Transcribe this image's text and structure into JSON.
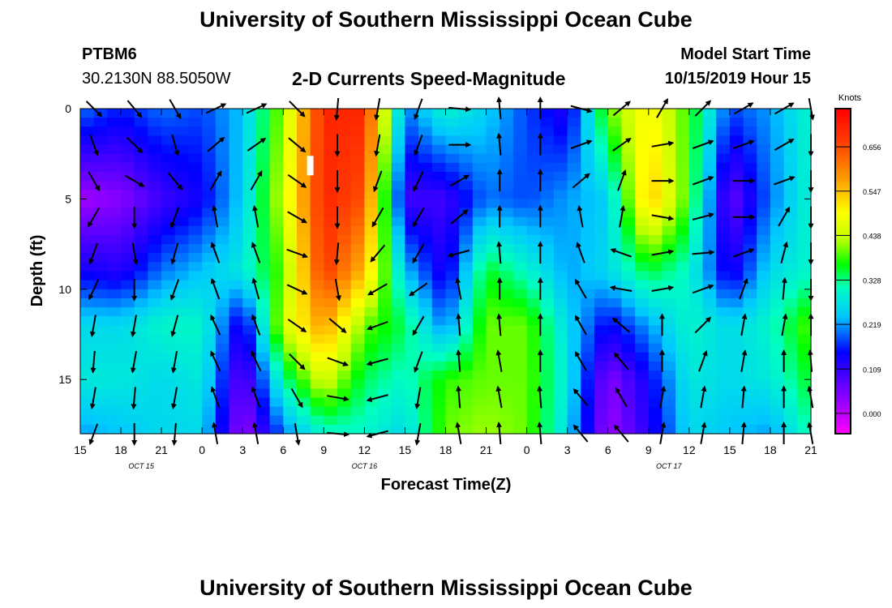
{
  "header": {
    "title": "University of Southern Mississippi Ocean Cube",
    "station_id": "PTBM6",
    "coordinates": "30.2130N 88.5050W",
    "subtitle": "2-D Currents Speed-Magnitude",
    "model_start_label": "Model Start Time",
    "model_start_value": "10/15/2019 Hour 15"
  },
  "footer": {
    "title": "University of Southern Mississippi Ocean Cube"
  },
  "chart_data": {
    "type": "heatmap",
    "title": "2-D Currents Speed-Magnitude",
    "xlabel": "Forecast Time(Z)",
    "ylabel": "Depth (ft)",
    "x_unit": "hours since model start (10/15/2019 Hour 15)",
    "xlim": [
      0,
      54
    ],
    "ylim": [
      0,
      18
    ],
    "y_inverted": true,
    "x_ticks": [
      {
        "pos": 0,
        "label": "15"
      },
      {
        "pos": 3,
        "label": "18"
      },
      {
        "pos": 6,
        "label": "21"
      },
      {
        "pos": 9,
        "label": "0"
      },
      {
        "pos": 12,
        "label": "3"
      },
      {
        "pos": 15,
        "label": "6"
      },
      {
        "pos": 18,
        "label": "9"
      },
      {
        "pos": 21,
        "label": "12"
      },
      {
        "pos": 24,
        "label": "15"
      },
      {
        "pos": 27,
        "label": "18"
      },
      {
        "pos": 30,
        "label": "21"
      },
      {
        "pos": 33,
        "label": "0"
      },
      {
        "pos": 36,
        "label": "3"
      },
      {
        "pos": 39,
        "label": "6"
      },
      {
        "pos": 42,
        "label": "9"
      },
      {
        "pos": 45,
        "label": "12"
      },
      {
        "pos": 48,
        "label": "15"
      },
      {
        "pos": 51,
        "label": "18"
      },
      {
        "pos": 54,
        "label": "21"
      }
    ],
    "date_labels": [
      {
        "pos": 4.5,
        "label": "OCT 15"
      },
      {
        "pos": 21,
        "label": "OCT 16"
      },
      {
        "pos": 43.5,
        "label": "OCT 17"
      }
    ],
    "y_ticks": [
      {
        "pos": 0,
        "label": "0"
      },
      {
        "pos": 5,
        "label": "5"
      },
      {
        "pos": 10,
        "label": "10"
      },
      {
        "pos": 15,
        "label": "15"
      }
    ],
    "colorbar": {
      "unit": "Knots",
      "range": [
        -0.05,
        0.75
      ],
      "tick_values": [
        0.0,
        0.109,
        0.219,
        0.328,
        0.438,
        0.547,
        0.656
      ],
      "tick_labels": [
        "0.000",
        "0.109",
        "0.219",
        "0.328",
        "0.438",
        "0.547",
        "0.656"
      ]
    },
    "speed_profiles": {
      "hours": [
        0,
        3,
        6,
        9,
        12,
        15,
        18,
        21,
        24,
        27,
        30,
        33,
        36,
        39,
        42,
        45,
        48,
        51,
        54
      ],
      "depths": [
        0,
        5,
        9,
        12,
        15,
        18
      ],
      "rows": [
        [
          0.2,
          0.16,
          0.2,
          0.18,
          0.24,
          0.42,
          0.7,
          0.7,
          0.2,
          0.3,
          0.25,
          0.18,
          0.12,
          0.4,
          0.5,
          0.38,
          0.18,
          0.22,
          0.3
        ],
        [
          0.02,
          0.04,
          0.1,
          0.14,
          0.25,
          0.45,
          0.7,
          0.65,
          0.1,
          0.1,
          0.2,
          0.18,
          0.22,
          0.25,
          0.55,
          0.38,
          0.06,
          0.2,
          0.3
        ],
        [
          0.14,
          0.12,
          0.2,
          0.24,
          0.28,
          0.4,
          0.68,
          0.55,
          0.24,
          0.12,
          0.36,
          0.3,
          0.22,
          0.26,
          0.35,
          0.3,
          0.12,
          0.26,
          0.3
        ],
        [
          0.26,
          0.26,
          0.3,
          0.3,
          0.12,
          0.45,
          0.58,
          0.4,
          0.34,
          0.2,
          0.4,
          0.4,
          0.26,
          0.14,
          0.22,
          0.3,
          0.26,
          0.3,
          0.4
        ],
        [
          0.28,
          0.28,
          0.26,
          0.28,
          0.06,
          0.32,
          0.46,
          0.34,
          0.3,
          0.38,
          0.4,
          0.4,
          0.28,
          0.04,
          0.14,
          0.28,
          0.26,
          0.28,
          0.36
        ],
        [
          0.22,
          0.24,
          0.26,
          0.26,
          0.02,
          0.2,
          0.3,
          0.3,
          0.26,
          0.4,
          0.42,
          0.4,
          0.26,
          0.02,
          0.12,
          0.26,
          0.24,
          0.22,
          0.32
        ]
      ]
    },
    "vector_grid": {
      "hours": [
        1,
        4,
        7,
        10,
        13,
        16,
        19,
        22,
        25,
        28,
        31,
        34,
        37,
        40,
        43,
        46,
        49,
        52,
        54
      ],
      "depths": [
        0,
        2,
        4,
        6,
        8,
        10,
        12,
        14,
        16,
        18
      ],
      "angle_columns_deg": [
        [
          45,
          70,
          60,
          120,
          110,
          115,
          100,
          95,
          100,
          110
        ],
        [
          50,
          45,
          30,
          90,
          80,
          90,
          100,
          100,
          95,
          90
        ],
        [
          60,
          75,
          50,
          110,
          105,
          110,
          105,
          100,
          100,
          95
        ],
        [
          -25,
          -40,
          -60,
          -100,
          -110,
          -110,
          -115,
          -115,
          -110,
          -100
        ],
        [
          -25,
          -35,
          -60,
          -100,
          -110,
          -105,
          -110,
          -115,
          -110,
          -100
        ],
        [
          45,
          40,
          35,
          30,
          20,
          25,
          35,
          45,
          60,
          80
        ],
        [
          95,
          90,
          90,
          90,
          95,
          80,
          40,
          20,
          10,
          5
        ],
        [
          100,
          100,
          110,
          120,
          130,
          150,
          160,
          165,
          165,
          165
        ],
        [
          110,
          110,
          115,
          120,
          120,
          145,
          120,
          110,
          100,
          100
        ],
        [
          5,
          0,
          -30,
          -40,
          165,
          -100,
          -95,
          -95,
          -95,
          -100
        ],
        [
          -95,
          -95,
          -90,
          -90,
          -95,
          -90,
          -95,
          -100,
          -100,
          -95
        ],
        [
          -90,
          -90,
          -90,
          -90,
          -90,
          -90,
          -90,
          -90,
          -95,
          -95
        ],
        [
          15,
          -20,
          -40,
          -100,
          -110,
          -120,
          -120,
          -120,
          -130,
          -130
        ],
        [
          -40,
          -35,
          -70,
          -80,
          -160,
          -170,
          -140,
          -130,
          -120,
          -130
        ],
        [
          -60,
          -10,
          0,
          10,
          -10,
          -10,
          -90,
          -90,
          -80,
          -80
        ],
        [
          -45,
          -20,
          -20,
          -15,
          -5,
          -20,
          -45,
          -70,
          -80,
          -80
        ],
        [
          -30,
          -20,
          0,
          0,
          -20,
          -70,
          -80,
          -80,
          -85,
          -85
        ],
        [
          -30,
          -30,
          -20,
          -60,
          -75,
          -85,
          -80,
          -90,
          -90,
          -90
        ],
        [
          80,
          90,
          90,
          90,
          90,
          90,
          -90,
          -95,
          -100,
          -100
        ]
      ]
    },
    "annotation_marker": {
      "hour": 17,
      "depth": 3.2
    }
  }
}
